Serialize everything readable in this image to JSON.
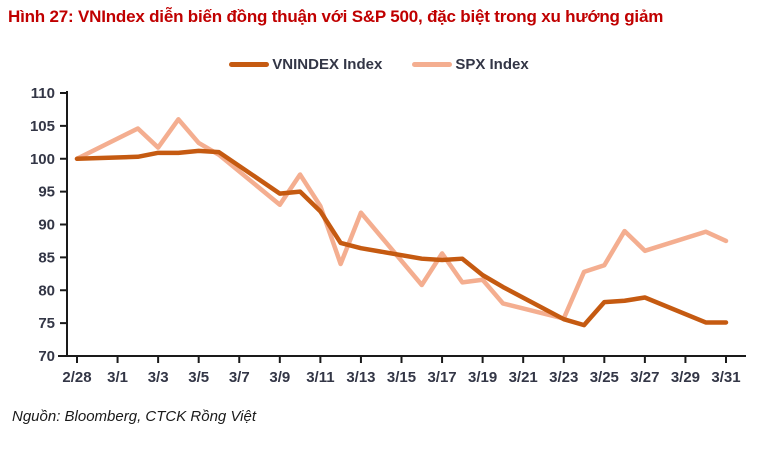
{
  "figure": {
    "title": "Hình 27: VNIndex diễn biến đồng thuận với S&P 500, đặc biệt trong xu hướng giảm",
    "source": "Nguồn: Bloomberg, CTCK Rồng Việt"
  },
  "colors": {
    "title": "#C00000",
    "vnindex_line": "#C55A11",
    "spx_line": "#F4AE90",
    "axis_text": "#333646",
    "axis_line": "#1a1a1a"
  },
  "chart_data": {
    "type": "line",
    "title": "",
    "xlabel": "",
    "ylabel": "",
    "ylim": [
      70,
      110
    ],
    "y_ticks": [
      70,
      75,
      80,
      85,
      90,
      95,
      100,
      105,
      110
    ],
    "x_tick_labels": [
      "2/28",
      "3/1",
      "3/3",
      "3/5",
      "3/7",
      "3/9",
      "3/11",
      "3/13",
      "3/15",
      "3/17",
      "3/19",
      "3/21",
      "3/23",
      "3/25",
      "3/27",
      "3/29",
      "3/31"
    ],
    "x_tick_days": [
      0,
      2,
      4,
      6,
      8,
      10,
      12,
      14,
      16,
      18,
      20,
      22,
      24,
      26,
      28,
      30,
      32
    ],
    "grid": false,
    "legend_position": "top-center",
    "x_dates": [
      "2/28",
      "3/2",
      "3/3",
      "3/4",
      "3/5",
      "3/6",
      "3/9",
      "3/10",
      "3/11",
      "3/12",
      "3/13",
      "3/16",
      "3/17",
      "3/18",
      "3/19",
      "3/20",
      "3/23",
      "3/24",
      "3/25",
      "3/26",
      "3/27",
      "3/30",
      "3/31"
    ],
    "x_days": [
      0,
      3,
      4,
      5,
      6,
      7,
      10,
      11,
      12,
      13,
      14,
      17,
      18,
      19,
      20,
      21,
      24,
      25,
      26,
      27,
      28,
      31,
      32
    ],
    "series": [
      {
        "name": "VNINDEX Index",
        "color": "#C55A11",
        "values": [
          100,
          100.3,
          100.9,
          100.9,
          101.2,
          101.0,
          94.7,
          95.0,
          92.0,
          87.2,
          86.4,
          84.8,
          84.6,
          84.8,
          82.3,
          80.5,
          75.6,
          74.7,
          78.2,
          78.4,
          78.9,
          75.1,
          75.1
        ]
      },
      {
        "name": "SPX Index",
        "color": "#F4AE90",
        "values": [
          100,
          104.6,
          101.7,
          106.0,
          102.4,
          100.6,
          93.0,
          97.6,
          92.8,
          84.0,
          91.8,
          80.8,
          85.6,
          81.2,
          81.6,
          78.0,
          75.7,
          82.8,
          83.8,
          89.0,
          86.0,
          88.9,
          87.5
        ]
      }
    ]
  }
}
